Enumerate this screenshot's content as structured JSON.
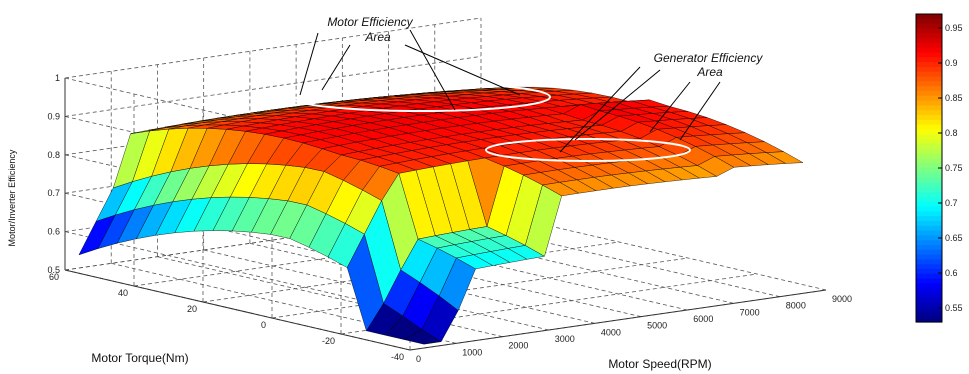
{
  "chart_data": {
    "type": "surface",
    "title": "",
    "zlabel": "Motor/Inverter Efficiency",
    "xlabel": "Motor Speed(RPM)",
    "ylabel": "Motor Torque(Nm)",
    "x_ticks": [
      "0",
      "1000",
      "2000",
      "3000",
      "4000",
      "5000",
      "6000",
      "7000",
      "8000",
      "9000"
    ],
    "y_ticks": [
      "60",
      "40",
      "20",
      "0",
      "-20",
      "-40"
    ],
    "z_ticks": [
      "0.5",
      "0.6",
      "0.7",
      "0.8",
      "0.9",
      "1"
    ],
    "xlim": [
      0,
      9000
    ],
    "ylim": [
      -40,
      60
    ],
    "zlim": [
      0.5,
      1
    ],
    "colormap": "jet",
    "colorbar": {
      "ticks": [
        "0.95",
        "0.9",
        "0.85",
        "0.8",
        "0.75",
        "0.7",
        "0.65",
        "0.6",
        "0.55"
      ],
      "range": [
        0.53,
        0.97
      ]
    },
    "annotations": [
      {
        "line1": "Motor Efficiency",
        "line2": "Area"
      },
      {
        "line1": "Generator Efficiency",
        "line2": "Area"
      }
    ],
    "grid": true
  }
}
